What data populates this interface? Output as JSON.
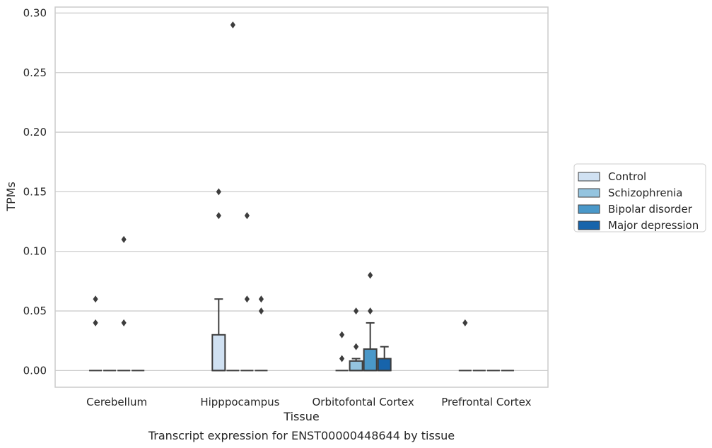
{
  "chart_data": {
    "type": "box",
    "title": "",
    "caption": "Transcript expression for ENST00000448644 by tissue",
    "xlabel": "Tissue",
    "ylabel": "TPMs",
    "ylim": [
      -0.014,
      0.305
    ],
    "yticks": [
      0.0,
      0.05,
      0.1,
      0.15,
      0.2,
      0.25,
      0.3
    ],
    "ytick_labels": [
      "0.00",
      "0.05",
      "0.10",
      "0.15",
      "0.20",
      "0.25",
      "0.30"
    ],
    "grid": "horizontal",
    "legend_position": "right",
    "categories": [
      "Cerebellum",
      "Hipppocampus",
      "Orbitofontal Cortex",
      "Prefrontal Cortex"
    ],
    "series": [
      {
        "name": "Control",
        "color": "#d0e1f2",
        "boxes": [
          {
            "q1": 0,
            "median": 0,
            "q3": 0,
            "whisker_low": 0,
            "whisker_high": 0,
            "outliers": [
              0.06,
              0.04
            ]
          },
          {
            "q1": 0,
            "median": 0,
            "q3": 0.03,
            "whisker_low": 0,
            "whisker_high": 0.06,
            "outliers": [
              0.15,
              0.13
            ]
          },
          {
            "q1": 0,
            "median": 0,
            "q3": 0,
            "whisker_low": 0,
            "whisker_high": 0,
            "outliers": [
              0.03,
              0.01
            ]
          },
          {
            "q1": 0,
            "median": 0,
            "q3": 0,
            "whisker_low": 0,
            "whisker_high": 0,
            "outliers": [
              0.04
            ]
          }
        ]
      },
      {
        "name": "Schizophrenia",
        "color": "#94c4df",
        "boxes": [
          {
            "q1": 0,
            "median": 0,
            "q3": 0,
            "whisker_low": 0,
            "whisker_high": 0,
            "outliers": []
          },
          {
            "q1": 0,
            "median": 0,
            "q3": 0,
            "whisker_low": 0,
            "whisker_high": 0,
            "outliers": [
              0.29
            ]
          },
          {
            "q1": 0,
            "median": 0,
            "q3": 0.008,
            "whisker_low": 0,
            "whisker_high": 0.01,
            "outliers": [
              0.05,
              0.02
            ]
          },
          {
            "q1": 0,
            "median": 0,
            "q3": 0,
            "whisker_low": 0,
            "whisker_high": 0,
            "outliers": []
          }
        ]
      },
      {
        "name": "Bipolar disorder",
        "color": "#4a98c9",
        "boxes": [
          {
            "q1": 0,
            "median": 0,
            "q3": 0,
            "whisker_low": 0,
            "whisker_high": 0,
            "outliers": [
              0.11,
              0.04
            ]
          },
          {
            "q1": 0,
            "median": 0,
            "q3": 0,
            "whisker_low": 0,
            "whisker_high": 0,
            "outliers": [
              0.13,
              0.06
            ]
          },
          {
            "q1": 0,
            "median": 0,
            "q3": 0.018,
            "whisker_low": 0,
            "whisker_high": 0.04,
            "outliers": [
              0.08,
              0.05
            ]
          },
          {
            "q1": 0,
            "median": 0,
            "q3": 0,
            "whisker_low": 0,
            "whisker_high": 0,
            "outliers": []
          }
        ]
      },
      {
        "name": "Major depression",
        "color": "#1764ab",
        "boxes": [
          {
            "q1": 0,
            "median": 0,
            "q3": 0,
            "whisker_low": 0,
            "whisker_high": 0,
            "outliers": []
          },
          {
            "q1": 0,
            "median": 0,
            "q3": 0,
            "whisker_low": 0,
            "whisker_high": 0,
            "outliers": [
              0.06,
              0.05
            ]
          },
          {
            "q1": 0,
            "median": 0,
            "q3": 0.01,
            "whisker_low": 0,
            "whisker_high": 0.02,
            "outliers": []
          },
          {
            "q1": 0,
            "median": 0,
            "q3": 0,
            "whisker_low": 0,
            "whisker_high": 0,
            "outliers": []
          }
        ]
      }
    ]
  }
}
